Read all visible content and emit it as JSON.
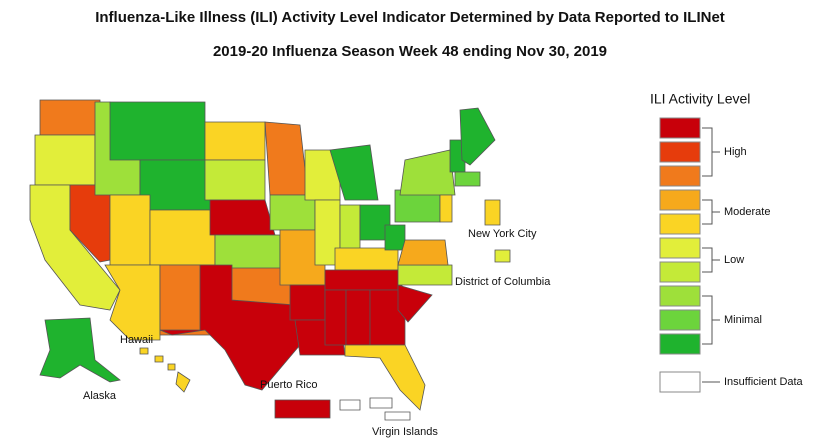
{
  "title": "Influenza-Like Illness (ILI) Activity Level Indicator Determined by Data Reported to ILINet",
  "subtitle": "2019-20 Influenza Season Week 48 ending Nov 30, 2019",
  "legend": {
    "title": "ILI Activity Level",
    "levels": [
      "#c8000a",
      "#e63c0c",
      "#f07a1c",
      "#f6a91c",
      "#fad424",
      "#e2ee3a",
      "#c4ea38",
      "#9ee03a",
      "#6cd43c",
      "#1fb32e"
    ],
    "groups": [
      "High",
      "Moderate",
      "Low",
      "Minimal"
    ],
    "insufficient": {
      "label": "Insufficient Data",
      "color": "#ffffff"
    }
  },
  "map_labels": {
    "new_york_city": "New York City",
    "district_of_columbia": "District of Columbia",
    "hawaii": "Hawaii",
    "alaska": "Alaska",
    "puerto_rico": "Puerto Rico",
    "virgin_islands": "Virgin Islands"
  }
}
